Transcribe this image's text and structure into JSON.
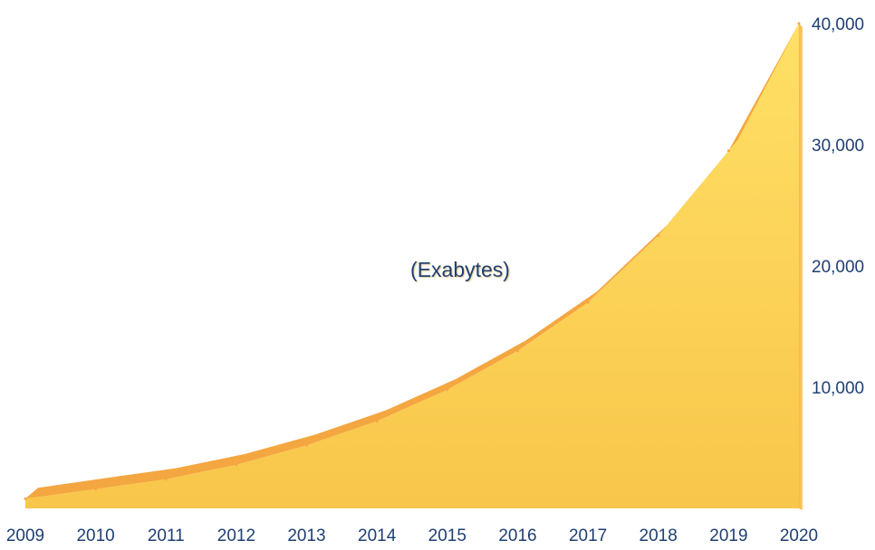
{
  "chart_data": {
    "type": "area",
    "title": "",
    "xlabel": "",
    "ylabel": "",
    "unit_label": "(Exabytes)",
    "x": [
      "2009",
      "2010",
      "2011",
      "2012",
      "2013",
      "2014",
      "2015",
      "2016",
      "2017",
      "2018",
      "2019",
      "2020"
    ],
    "values": [
      800,
      1600,
      2400,
      3600,
      5200,
      7200,
      9800,
      13000,
      17000,
      22500,
      29500,
      40000
    ],
    "ylim": [
      0,
      40000
    ],
    "yticks": [
      "10,000",
      "20,000",
      "30,000",
      "40,000"
    ],
    "ytick_values": [
      10000,
      20000,
      30000,
      40000
    ],
    "y_axis_position": "right",
    "grid": false,
    "legend": "none",
    "colors": {
      "fill_top": "#ffe066",
      "fill_bottom": "#f8c64a",
      "ridge": "#f4a640",
      "text": "#1f3f73"
    }
  }
}
